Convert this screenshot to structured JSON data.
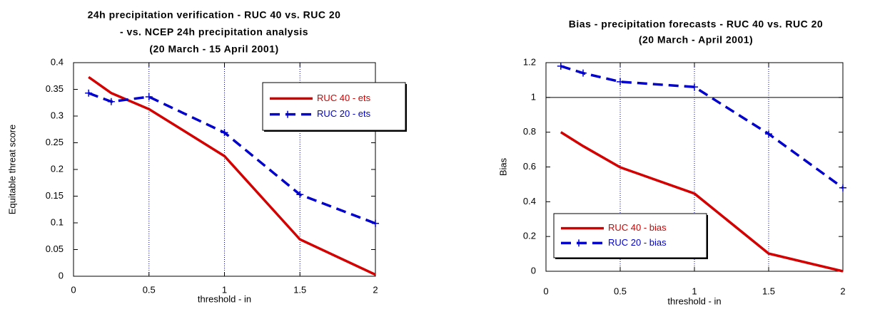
{
  "chart_data": [
    {
      "type": "line",
      "title": [
        "24h precipitation verification - RUC 40 vs. RUC 20",
        "- vs. NCEP 24h precipitation analysis",
        "(20 March - 15 April 2001)"
      ],
      "x_label": "threshold - in",
      "y_label": "Equitable threat score",
      "x": [
        0.1,
        0.25,
        0.5,
        1,
        1.5,
        2
      ],
      "series": [
        {
          "name": "RUC 40 - ets",
          "color": "#d40000",
          "dashed": false,
          "markers": false,
          "values": [
            0.373,
            0.343,
            0.313,
            0.225,
            0.069,
            0.003
          ]
        },
        {
          "name": "RUC 20 - ets",
          "color": "#0000cc",
          "dashed": true,
          "markers": true,
          "values": [
            0.343,
            0.327,
            0.336,
            0.269,
            0.153,
            0.099
          ]
        }
      ],
      "xlim": [
        0,
        2
      ],
      "xticks": [
        0,
        0.5,
        1,
        1.5,
        2
      ],
      "ylim": [
        0,
        0.4
      ],
      "yticks": [
        0,
        0.05,
        0.1,
        0.15,
        0.2,
        0.25,
        0.3,
        0.35,
        0.4
      ],
      "grid_x": [
        0.5,
        1,
        1.5
      ],
      "legend": "upper right"
    },
    {
      "type": "line",
      "title": [
        "Bias - precipitation forecasts - RUC 40 vs. RUC 20",
        "(20 March - April 2001)"
      ],
      "x_label": "threshold - in",
      "y_label": "Bias",
      "x": [
        0.1,
        0.25,
        0.5,
        1,
        1.5,
        2
      ],
      "series": [
        {
          "name": "RUC 40 - bias",
          "color": "#d40000",
          "dashed": false,
          "markers": false,
          "values": [
            0.8,
            0.72,
            0.598,
            0.447,
            0.102,
            0
          ]
        },
        {
          "name": "RUC 20 - bias",
          "color": "#0000cc",
          "dashed": true,
          "markers": true,
          "values": [
            1.18,
            1.14,
            1.09,
            1.06,
            0.79,
            0.48
          ]
        }
      ],
      "xlim": [
        0,
        2
      ],
      "xticks": [
        0,
        0.5,
        1,
        1.5,
        2
      ],
      "ylim": [
        0,
        1.2
      ],
      "yticks": [
        0,
        0.2,
        0.4,
        0.6,
        0.8,
        1,
        1.2
      ],
      "grid_x": [
        0.5,
        1,
        1.5
      ],
      "hline": 1,
      "legend": "lower left"
    }
  ]
}
